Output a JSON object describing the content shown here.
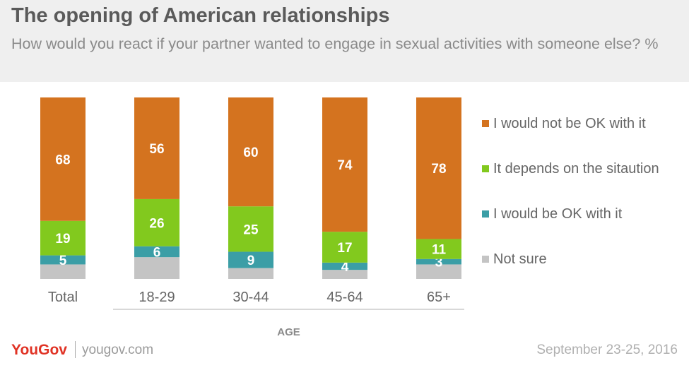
{
  "header": {
    "title": "The opening of American relationships",
    "subtitle": "How would you react if your partner wanted to engage in sexual activities with someone else? %"
  },
  "footer": {
    "logo": "YouGov",
    "site": "yougov.com",
    "date": "September 23-25, 2016"
  },
  "colors": {
    "not_ok": "#d4731f",
    "depends": "#82c91e",
    "ok": "#3b9ea6",
    "not_sure": "#c4c4c4"
  },
  "chart_data": {
    "type": "bar",
    "stacked": true,
    "categories": [
      "Total",
      "18-29",
      "30-44",
      "45-64",
      "65+"
    ],
    "category_group_label": "AGE",
    "series": [
      {
        "name": "Not sure",
        "key": "not_sure",
        "values": [
          8,
          12,
          6,
          5,
          8
        ],
        "labels": [
          "",
          "",
          "",
          "",
          ""
        ]
      },
      {
        "name": "I would be OK with it",
        "key": "ok",
        "values": [
          5,
          6,
          9,
          4,
          3
        ],
        "labels": [
          "5",
          "6",
          "9",
          "4",
          "3"
        ]
      },
      {
        "name": "It depends on the sitaution",
        "key": "depends",
        "values": [
          19,
          26,
          25,
          17,
          11
        ],
        "labels": [
          "19",
          "26",
          "25",
          "17",
          "11"
        ]
      },
      {
        "name": "I would not be OK with it",
        "key": "not_ok",
        "values": [
          68,
          56,
          60,
          74,
          78
        ],
        "labels": [
          "68",
          "56",
          "60",
          "74",
          "78"
        ]
      }
    ],
    "legend_order": [
      "not_ok",
      "depends",
      "ok",
      "not_sure"
    ],
    "legend_position": "right",
    "ylim": [
      0,
      100
    ],
    "grid": false
  }
}
